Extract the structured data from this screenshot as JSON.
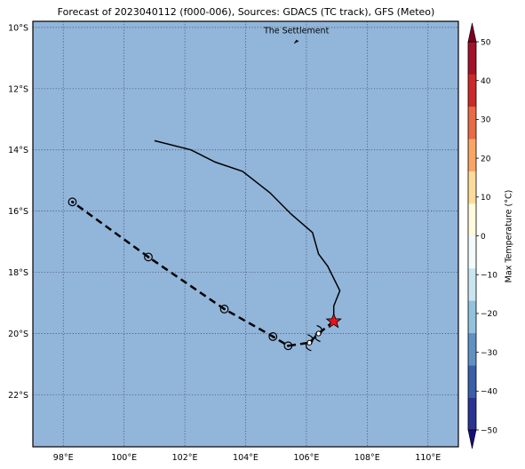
{
  "title": "Forecast of 2023040112 (f000-006), Sources: GDACS (TC track), GFS (Meteo)",
  "colors": {
    "ocean": "#92b5da",
    "grid": "#3b4a5e",
    "frame": "#000000",
    "cb_colors": [
      "#160f7a",
      "#2b3492",
      "#3b5fa8",
      "#5f92c3",
      "#92c2dd",
      "#c9e6f0",
      "#f3fbfd",
      "#fffbdc",
      "#fddb99",
      "#fba564",
      "#ea6a45",
      "#cc2a2a",
      "#a51128",
      "#7e0023"
    ]
  },
  "axes": {
    "x_ticks": [
      "98°E",
      "100°E",
      "102°E",
      "104°E",
      "106°E",
      "108°E",
      "110°E"
    ],
    "y_ticks": [
      "10°S",
      "12°S",
      "14°S",
      "16°S",
      "18°S",
      "20°S",
      "22°S"
    ]
  },
  "place_label": "The Settlement",
  "colorbar": {
    "label": "Max Temperature (°C)",
    "ticks": [
      "50",
      "40",
      "30",
      "20",
      "10",
      "0",
      "−10",
      "−20",
      "−30",
      "−40",
      "−50"
    ]
  },
  "map_data": {
    "extent": {
      "lon": [
        97.0,
        111.0
      ],
      "lat": [
        -23.7,
        -9.8
      ]
    },
    "place_point": {
      "lon": 105.67,
      "lat": -10.45
    },
    "current_position": {
      "lon": 106.9,
      "lat": -19.6,
      "symbol": "red-star"
    },
    "past_track": [
      {
        "lon": 101.0,
        "lat": -13.7
      },
      {
        "lon": 102.2,
        "lat": -14.0
      },
      {
        "lon": 103.0,
        "lat": -14.4
      },
      {
        "lon": 103.9,
        "lat": -14.7
      },
      {
        "lon": 104.8,
        "lat": -15.4
      },
      {
        "lon": 105.5,
        "lat": -16.1
      },
      {
        "lon": 106.2,
        "lat": -16.7
      },
      {
        "lon": 106.4,
        "lat": -17.4
      },
      {
        "lon": 106.7,
        "lat": -17.8
      },
      {
        "lon": 107.1,
        "lat": -18.6
      },
      {
        "lon": 106.9,
        "lat": -19.1
      },
      {
        "lon": 106.9,
        "lat": -19.6
      }
    ],
    "forecast_track": [
      {
        "lon": 106.9,
        "lat": -19.6
      },
      {
        "lon": 106.4,
        "lat": -20.0
      },
      {
        "lon": 106.1,
        "lat": -20.3
      },
      {
        "lon": 105.4,
        "lat": -20.4
      },
      {
        "lon": 104.9,
        "lat": -20.1
      },
      {
        "lon": 103.3,
        "lat": -19.2
      },
      {
        "lon": 100.8,
        "lat": -17.5
      },
      {
        "lon": 98.3,
        "lat": -15.7
      }
    ],
    "forecast_points": [
      {
        "lon": 106.4,
        "lat": -20.0,
        "symbol": "tc"
      },
      {
        "lon": 106.1,
        "lat": -20.3,
        "symbol": "tc"
      },
      {
        "lon": 105.4,
        "lat": -20.4,
        "symbol": "circle"
      },
      {
        "lon": 104.9,
        "lat": -20.1,
        "symbol": "circle"
      },
      {
        "lon": 103.3,
        "lat": -19.2,
        "symbol": "circle"
      },
      {
        "lon": 100.8,
        "lat": -17.5,
        "symbol": "circle"
      },
      {
        "lon": 98.3,
        "lat": -15.7,
        "symbol": "circle"
      }
    ]
  }
}
